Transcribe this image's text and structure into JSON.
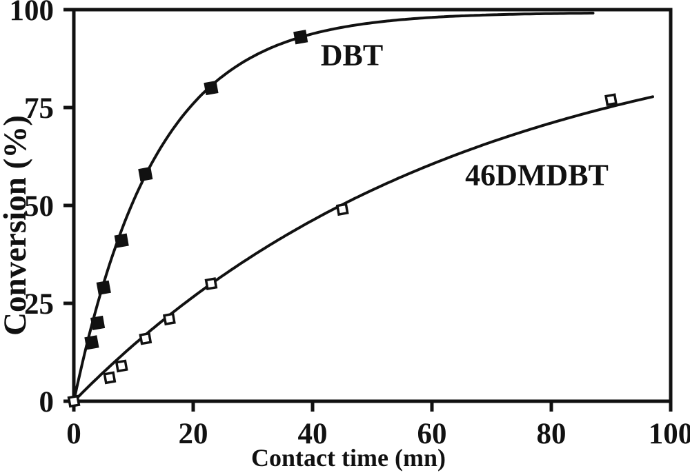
{
  "chart_data": {
    "type": "scatter",
    "title": "",
    "xlabel": "Contact time (mn)",
    "ylabel": "Conversion (%)",
    "xlim": [
      0,
      100
    ],
    "ylim": [
      0,
      100
    ],
    "x_ticks": [
      0,
      20,
      40,
      60,
      80,
      100
    ],
    "y_ticks": [
      0,
      25,
      50,
      75,
      100
    ],
    "grid": false,
    "legend_position": "inline-annotations",
    "colors": {
      "foreground": "#111111",
      "background": "#ffffff"
    },
    "series": [
      {
        "name": "DBT",
        "marker": "filled-diamond",
        "points": [
          [
            3,
            15
          ],
          [
            4,
            20
          ],
          [
            5,
            29
          ],
          [
            8,
            41
          ],
          [
            12,
            58
          ],
          [
            23,
            80
          ],
          [
            38,
            93
          ]
        ],
        "fit_curve": {
          "model": "y = A*(1-exp(-k*t))",
          "A": 99.3,
          "k": 0.0725,
          "t_range": [
            0,
            87
          ]
        }
      },
      {
        "name": "46DMDBT",
        "marker": "open-diamond",
        "points": [
          [
            0,
            0
          ],
          [
            6,
            6
          ],
          [
            8,
            9
          ],
          [
            12,
            16
          ],
          [
            16,
            21
          ],
          [
            23,
            30
          ],
          [
            45,
            49
          ],
          [
            90,
            77
          ]
        ],
        "fit_curve": {
          "model": "y = A*(1-exp(-k*t))",
          "A": 100,
          "k": 0.0155,
          "t_range": [
            0,
            97
          ]
        }
      }
    ],
    "annotations": [
      {
        "text": "DBT",
        "x": 46.5,
        "y": 88.5
      },
      {
        "text": "46DMDBT",
        "x": 77.5,
        "y": 58
      }
    ]
  }
}
